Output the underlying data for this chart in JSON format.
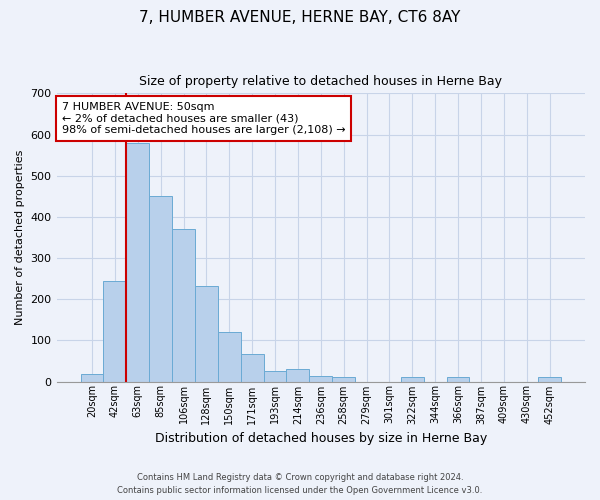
{
  "title": "7, HUMBER AVENUE, HERNE BAY, CT6 8AY",
  "subtitle": "Size of property relative to detached houses in Herne Bay",
  "xlabel": "Distribution of detached houses by size in Herne Bay",
  "ylabel": "Number of detached properties",
  "bar_labels": [
    "20sqm",
    "42sqm",
    "63sqm",
    "85sqm",
    "106sqm",
    "128sqm",
    "150sqm",
    "171sqm",
    "193sqm",
    "214sqm",
    "236sqm",
    "258sqm",
    "279sqm",
    "301sqm",
    "322sqm",
    "344sqm",
    "366sqm",
    "387sqm",
    "409sqm",
    "430sqm",
    "452sqm"
  ],
  "bar_values": [
    18,
    245,
    580,
    450,
    370,
    232,
    120,
    68,
    25,
    30,
    14,
    10,
    0,
    0,
    10,
    0,
    10,
    0,
    0,
    0,
    10
  ],
  "bar_color": "#b8d0eb",
  "bar_edge_color": "#6aaad4",
  "vline_color": "#cc0000",
  "ylim": [
    0,
    700
  ],
  "yticks": [
    0,
    100,
    200,
    300,
    400,
    500,
    600,
    700
  ],
  "annotation_text": "7 HUMBER AVENUE: 50sqm\n← 2% of detached houses are smaller (43)\n98% of semi-detached houses are larger (2,108) →",
  "annotation_box_color": "#ffffff",
  "annotation_box_edge": "#cc0000",
  "footer_line1": "Contains HM Land Registry data © Crown copyright and database right 2024.",
  "footer_line2": "Contains public sector information licensed under the Open Government Licence v3.0.",
  "bg_color": "#eef2fa",
  "plot_bg_color": "#eef2fa",
  "grid_color": "#c8d4e8"
}
